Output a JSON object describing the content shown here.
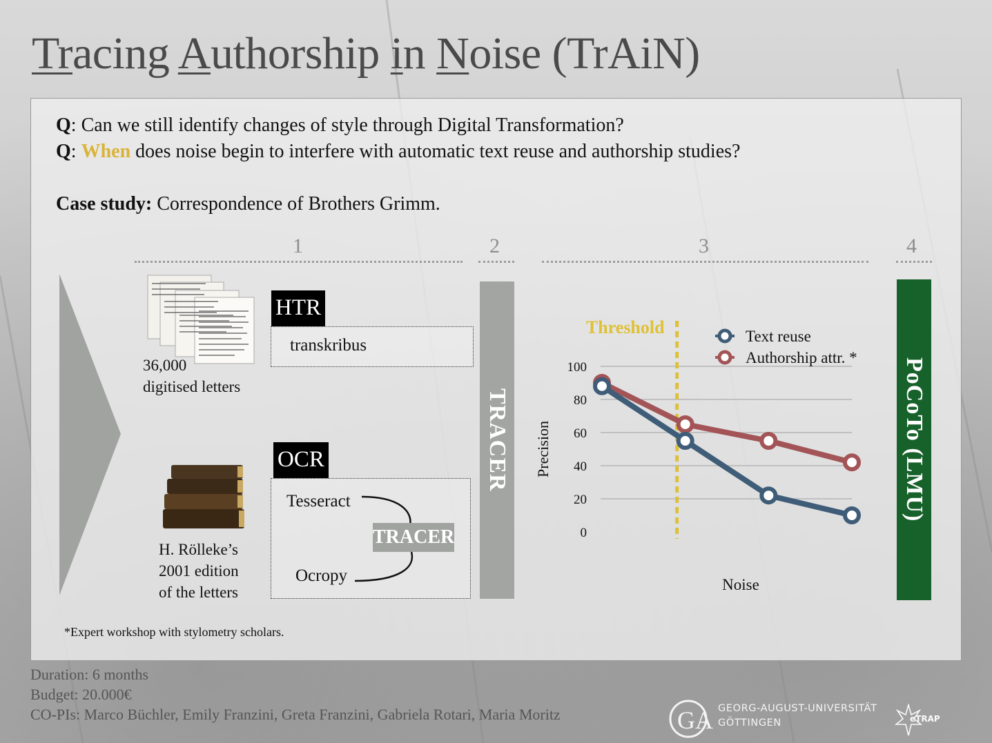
{
  "title": {
    "parts": [
      {
        "u": "Tr",
        "rest": "acing "
      },
      {
        "u": "A",
        "rest": "uthorship "
      },
      {
        "u": "i",
        "rest": "n "
      },
      {
        "u": "N",
        "rest": "oise (TrAiN)"
      }
    ]
  },
  "questions": [
    {
      "prefix": "Q",
      "sep": ": ",
      "highlight": "",
      "text": "Can we still identify changes of style through Digital Transformation?"
    },
    {
      "prefix": "Q",
      "sep": ": ",
      "highlight": "When",
      "text": " does noise begin to interfere with automatic text reuse and authorship studies?"
    }
  ],
  "case_study": {
    "label": "Case study:",
    "text": " Correspondence of Brothers Grimm."
  },
  "steps": [
    "1",
    "2",
    "3",
    "4"
  ],
  "sources": {
    "letters": {
      "count": "36,000",
      "label": "digitised letters"
    },
    "edition": {
      "line1": "H. Rölleke’s",
      "line2": "2001 edition",
      "line3": "of the letters"
    }
  },
  "htr": {
    "tag": "HTR",
    "tool": "transkribus"
  },
  "ocr": {
    "tag": "OCR",
    "tool1": "Tesseract",
    "tool2": "Ocropy",
    "merge": "TRACER"
  },
  "tracer_bar": {
    "label": "TRACER",
    "color": "#a3a5a3"
  },
  "pocoto_bar": {
    "label": "PoCoTo (LMU)",
    "color": "#17612a"
  },
  "chart_data": {
    "type": "line",
    "threshold_label": "Threshold",
    "threshold_color": "#dfc136",
    "xlabel": "Noise",
    "ylabel": "Precision",
    "ylim": [
      0,
      100
    ],
    "yticks": [
      "0",
      "20",
      "40",
      "60",
      "80",
      "100"
    ],
    "x": [
      1,
      2,
      3,
      4
    ],
    "threshold_x": 1.9,
    "legend_position": "top-right",
    "series": [
      {
        "name": "Text reuse",
        "color": "#3f5d78",
        "values": [
          88,
          55,
          22,
          10
        ]
      },
      {
        "name": "Authorship attr. *",
        "color": "#a35456",
        "values": [
          90,
          65,
          55,
          42
        ]
      }
    ]
  },
  "footnote": "*Expert workshop with stylometry scholars.",
  "info": {
    "duration": "Duration: 6 months",
    "budget": "Budget: 20.000€",
    "copis": "CO-PIs: Marco Büchler, Emily Franzini, Greta Franzini, Gabriela Rotari, Maria Moritz"
  },
  "university": {
    "line1": "GEORG-AUGUST-UNIVERSITÄT",
    "line2": "GÖTTINGEN"
  },
  "etrap": "eTRAP"
}
